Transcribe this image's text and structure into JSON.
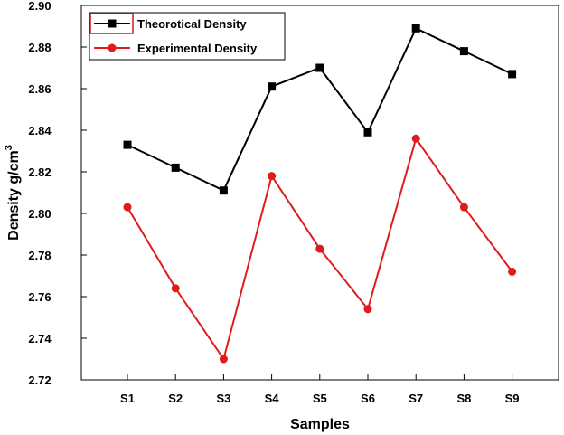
{
  "chart_data": {
    "type": "line",
    "title": "",
    "xlabel": "Samples",
    "ylabel": "Density g/cm",
    "ylabel_superscript": "3",
    "categories": [
      "S1",
      "S2",
      "S3",
      "S4",
      "S5",
      "S6",
      "S7",
      "S8",
      "S9"
    ],
    "ylim": [
      2.72,
      2.9
    ],
    "yticks": [
      "2.72",
      "2.74",
      "2.76",
      "2.78",
      "2.80",
      "2.82",
      "2.84",
      "2.86",
      "2.88",
      "2.90"
    ],
    "legend_position": "top-left",
    "grid": false,
    "series": [
      {
        "name": "Theorotical Density",
        "color": "#000000",
        "marker": "square",
        "values": [
          2.833,
          2.822,
          2.811,
          2.861,
          2.87,
          2.839,
          2.889,
          2.878,
          2.867
        ]
      },
      {
        "name": "Experimental Density",
        "color": "#e01b1b",
        "marker": "circle",
        "values": [
          2.803,
          2.764,
          2.73,
          2.818,
          2.783,
          2.754,
          2.836,
          2.803,
          2.772
        ]
      }
    ]
  }
}
